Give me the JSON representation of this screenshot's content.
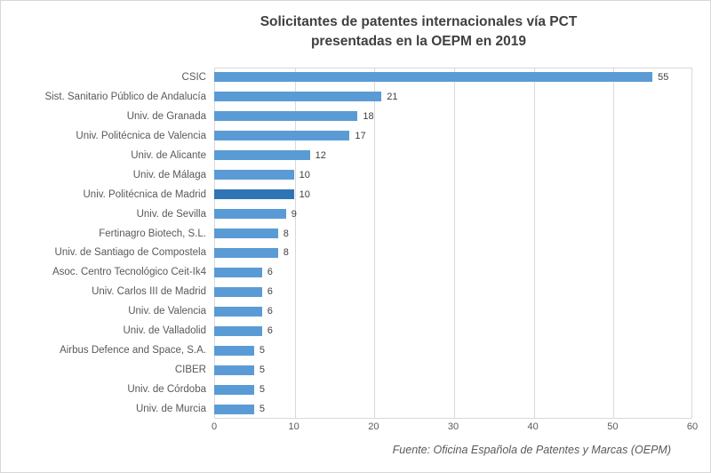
{
  "chart": {
    "title_line1": "Solicitantes de patentes internacionales vía PCT",
    "title_line2": "presentadas en la OEPM en 2019",
    "source": "Fuente:  Oficina Española de Patentes  y Marcas  (OEPM)"
  },
  "chart_data": {
    "type": "bar",
    "orientation": "horizontal",
    "title": "Solicitantes de patentes internacionales vía PCT presentadas en la OEPM en 2019",
    "categories": [
      "CSIC",
      "Sist. Sanitario Público de Andalucía",
      "Univ. de Granada",
      "Univ. Politécnica de Valencia",
      "Univ. de Alicante",
      "Univ. de Málaga",
      "Univ. Politécnica de Madrid",
      "Univ. de Sevilla",
      "Fertinagro Biotech, S.L.",
      "Univ. de Santiago de Compostela",
      "Asoc. Centro Tecnológico Ceit-Ik4",
      "Univ. Carlos III de Madrid",
      "Univ. de Valencia",
      "Univ. de Valladolid",
      "Airbus Defence and Space, S.A.",
      "CIBER",
      "Univ. de Córdoba",
      "Univ. de Murcia"
    ],
    "values": [
      55,
      21,
      18,
      17,
      12,
      10,
      10,
      9,
      8,
      8,
      6,
      6,
      6,
      6,
      5,
      5,
      5,
      5
    ],
    "highlight_category": "Univ. Politécnica de Madrid",
    "highlight_index": 6,
    "bar_color": "#5B9BD5",
    "highlight_color": "#2E75B6",
    "grid_color": "#D9D9D9",
    "xlim": [
      0,
      60
    ],
    "xticks": [
      0,
      10,
      20,
      30,
      40,
      50,
      60
    ],
    "grid": true,
    "data_labels": true,
    "legend": false,
    "source": "Fuente: Oficina Española de Patentes y Marcas (OEPM)"
  }
}
